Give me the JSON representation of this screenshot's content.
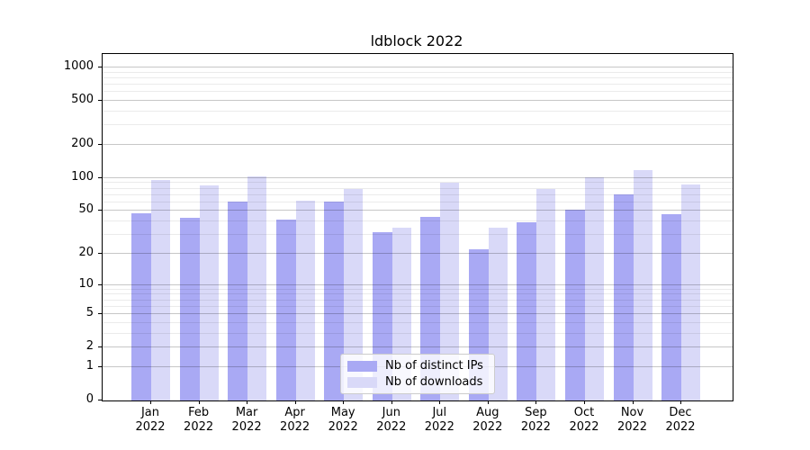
{
  "chart_data": {
    "type": "bar",
    "title": "ldblock 2022",
    "categories": [
      "Jan 2022",
      "Feb 2022",
      "Mar 2022",
      "Apr 2022",
      "May 2022",
      "Jun 2022",
      "Jul 2022",
      "Aug 2022",
      "Sep 2022",
      "Oct 2022",
      "Nov 2022",
      "Dec 2022"
    ],
    "series": [
      {
        "name": "Nb of distinct IPs",
        "color": "#a9a9f4",
        "values": [
          48,
          43,
          61,
          42,
          61,
          32,
          44,
          22,
          39,
          51,
          71,
          47
        ]
      },
      {
        "name": "Nb of downloads",
        "color": "#d9d9f8",
        "values": [
          97,
          85,
          103,
          62,
          80,
          35,
          90,
          35,
          80,
          101,
          119,
          87
        ]
      }
    ],
    "xlabel": "",
    "ylabel": "",
    "y_axis": {
      "scale": "log1p",
      "ticks": [
        0,
        1,
        2,
        5,
        10,
        20,
        50,
        100,
        200,
        500,
        1000
      ],
      "ylim": [
        0,
        1320
      ]
    },
    "grid": true,
    "legend_position": "lower center",
    "colors": {
      "background": "#ffffff",
      "axis": "#000000",
      "text": "#000000",
      "major_grid": "#c7c7c7",
      "minor_grid": "#ebebeb"
    }
  }
}
